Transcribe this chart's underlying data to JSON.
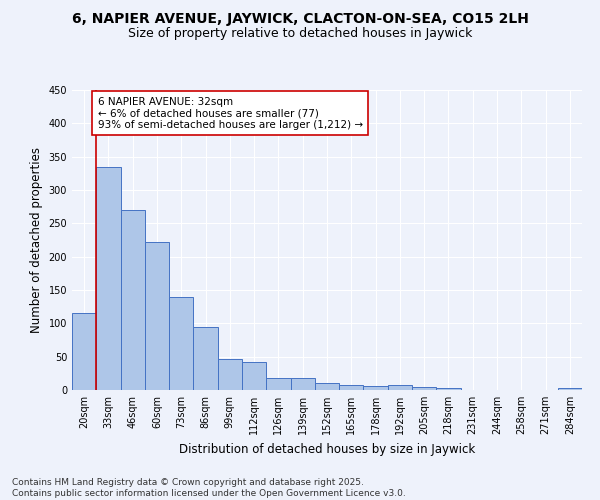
{
  "title": "6, NAPIER AVENUE, JAYWICK, CLACTON-ON-SEA, CO15 2LH",
  "subtitle": "Size of property relative to detached houses in Jaywick",
  "xlabel": "Distribution of detached houses by size in Jaywick",
  "ylabel": "Number of detached properties",
  "categories": [
    "20sqm",
    "33sqm",
    "46sqm",
    "60sqm",
    "73sqm",
    "86sqm",
    "99sqm",
    "112sqm",
    "126sqm",
    "139sqm",
    "152sqm",
    "165sqm",
    "178sqm",
    "192sqm",
    "205sqm",
    "218sqm",
    "231sqm",
    "244sqm",
    "258sqm",
    "271sqm",
    "284sqm"
  ],
  "values": [
    115,
    335,
    270,
    222,
    140,
    95,
    46,
    42,
    18,
    18,
    10,
    7,
    6,
    7,
    5,
    3,
    0,
    0,
    0,
    0,
    3
  ],
  "bar_color": "#aec6e8",
  "bar_edge_color": "#4472c4",
  "highlight_line_color": "#cc0000",
  "annotation_text": "6 NAPIER AVENUE: 32sqm\n← 6% of detached houses are smaller (77)\n93% of semi-detached houses are larger (1,212) →",
  "annotation_box_color": "#ffffff",
  "annotation_box_edge": "#cc0000",
  "ylim": [
    0,
    450
  ],
  "yticks": [
    0,
    50,
    100,
    150,
    200,
    250,
    300,
    350,
    400,
    450
  ],
  "bg_color": "#eef2fb",
  "grid_color": "#ffffff",
  "footer": "Contains HM Land Registry data © Crown copyright and database right 2025.\nContains public sector information licensed under the Open Government Licence v3.0.",
  "title_fontsize": 10,
  "subtitle_fontsize": 9,
  "axis_label_fontsize": 8.5,
  "tick_fontsize": 7,
  "footer_fontsize": 6.5,
  "annotation_fontsize": 7.5
}
